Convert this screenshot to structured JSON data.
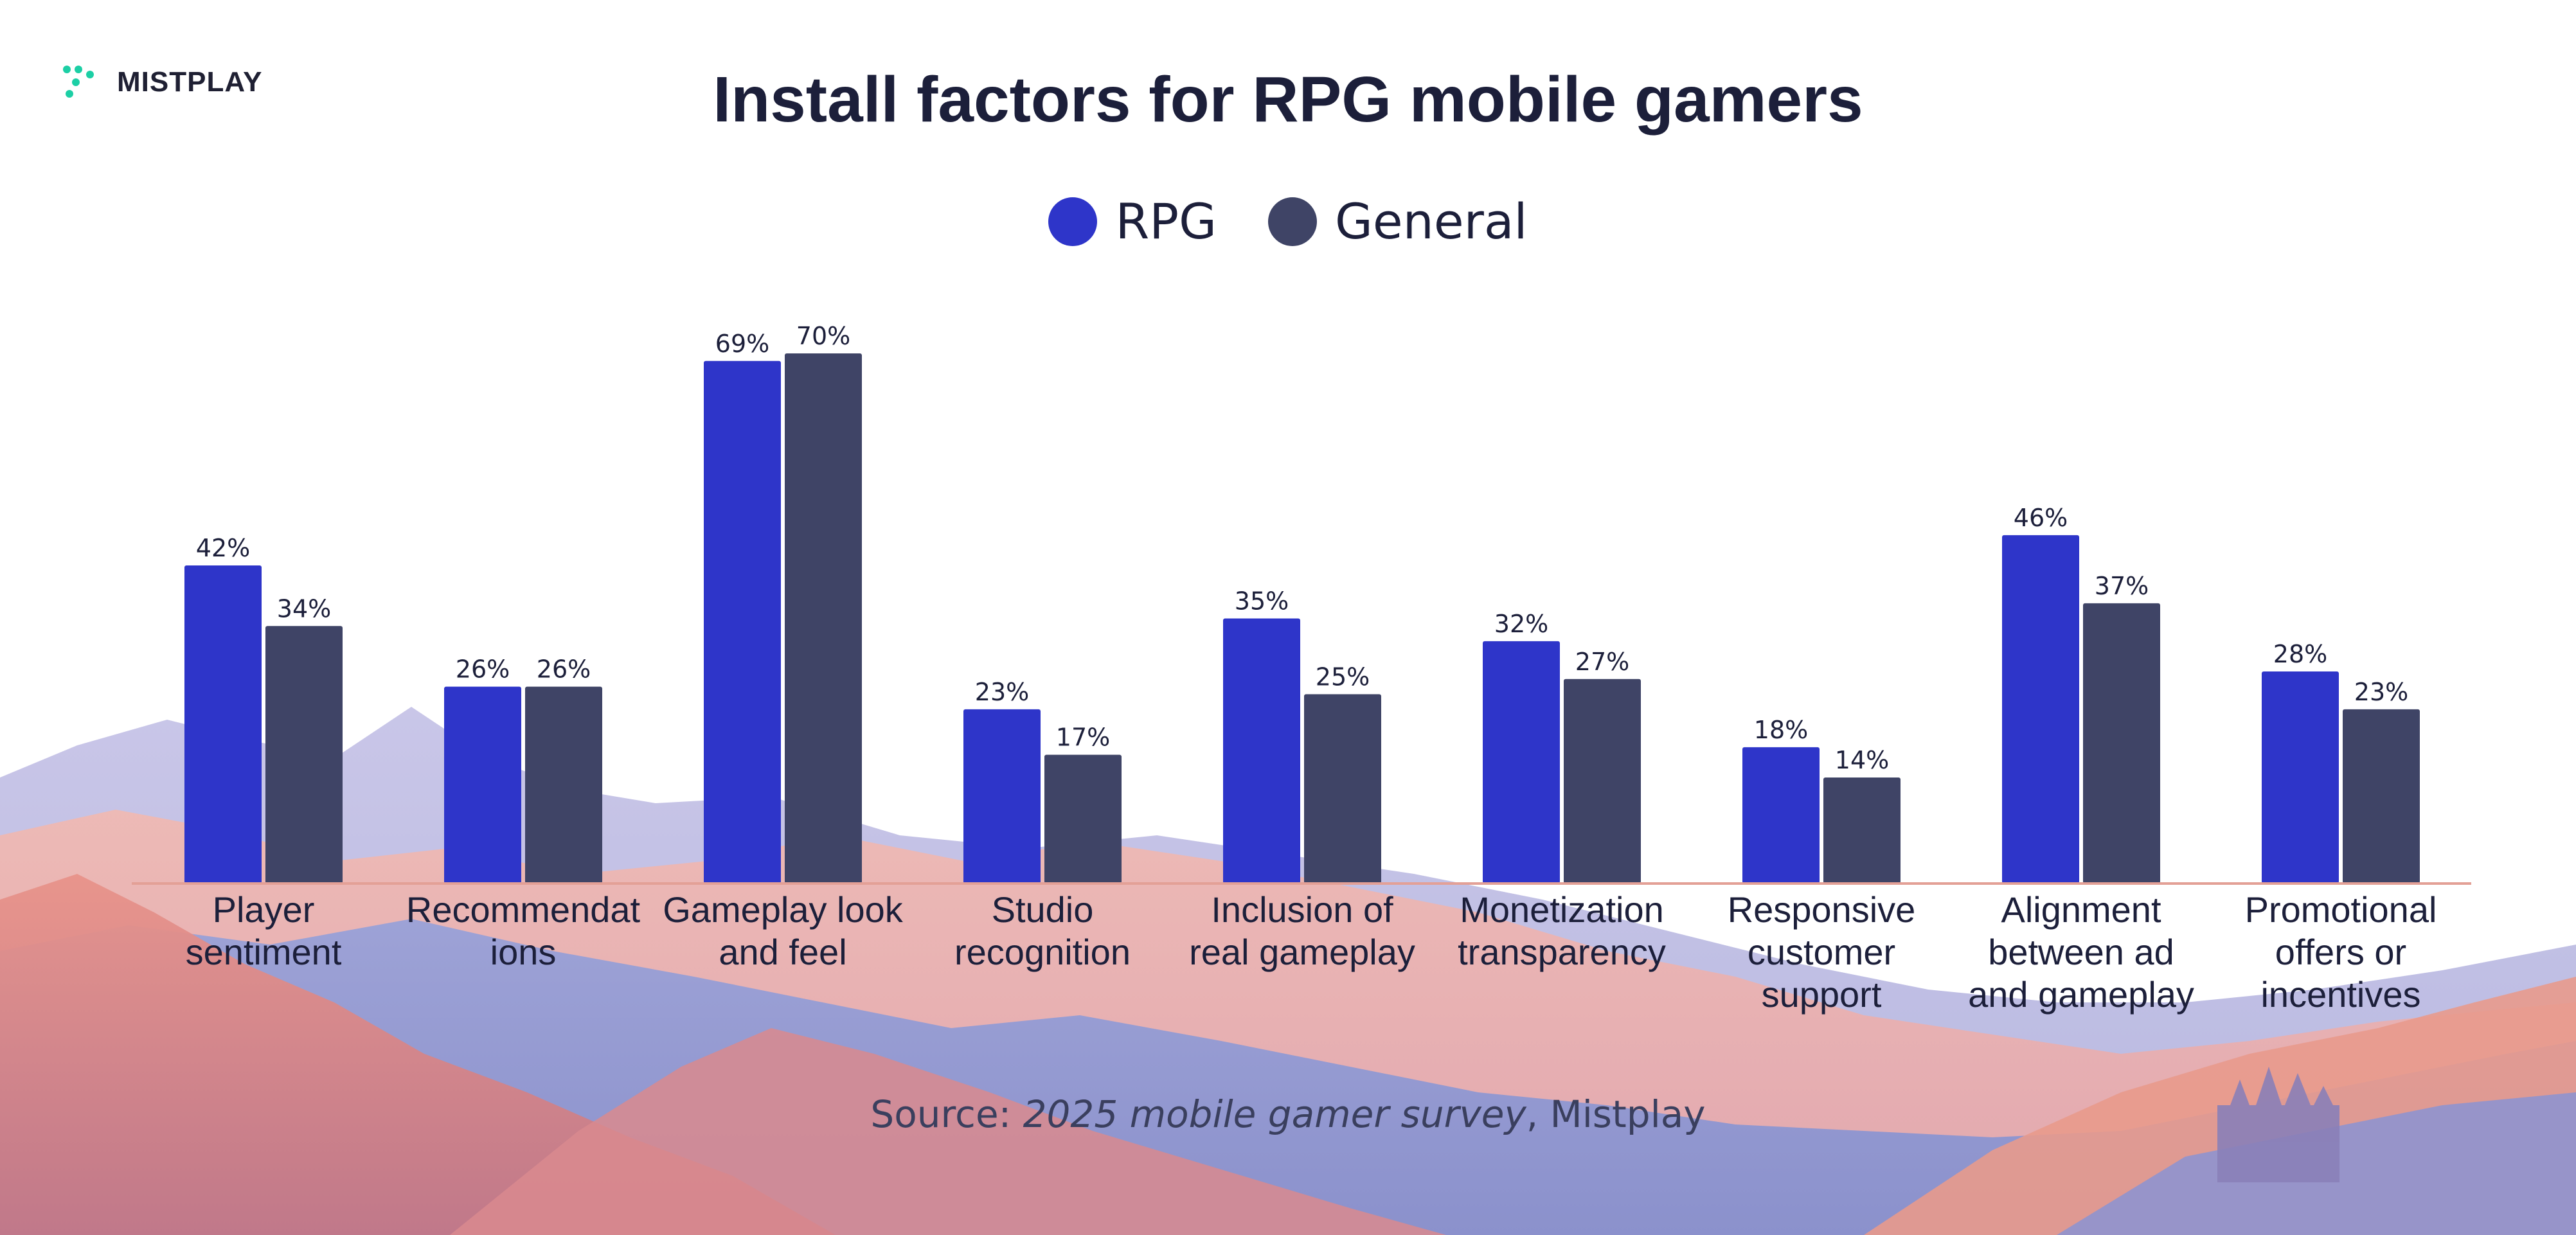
{
  "logo": {
    "text": "MISTPLAY",
    "icon": "mistplay-dots-logo",
    "color": "#1ccfa5"
  },
  "title": "Install factors for RPG mobile gamers",
  "legend": [
    {
      "label": "RPG",
      "color": "#2e35c9"
    },
    {
      "label": "General",
      "color": "#3f4466"
    }
  ],
  "source": {
    "prefix": "Source: ",
    "italic": "2025 mobile gamer survey",
    "suffix": ", Mistplay"
  },
  "chart_data": {
    "type": "bar",
    "title": "Install factors for RPG mobile gamers",
    "categories": [
      [
        "Player",
        "sentiment"
      ],
      [
        "Recommendat",
        "ions"
      ],
      [
        "Gameplay look",
        "and feel"
      ],
      [
        "Studio",
        "recognition"
      ],
      [
        "Inclusion of",
        "real gameplay"
      ],
      [
        "Monetization",
        "transparency"
      ],
      [
        "Responsive",
        "customer",
        "support"
      ],
      [
        "Alignment",
        "between ad",
        "and gameplay"
      ],
      [
        "Promotional",
        "offers or",
        "incentives"
      ]
    ],
    "series": [
      {
        "name": "RPG",
        "color": "#2e35c9",
        "values": [
          42,
          26,
          69,
          23,
          35,
          32,
          18,
          46,
          28
        ]
      },
      {
        "name": "General",
        "color": "#3f4466",
        "values": [
          34,
          26,
          70,
          17,
          25,
          27,
          14,
          37,
          23
        ]
      }
    ],
    "value_suffix": "%",
    "ylim": [
      0,
      70
    ],
    "grid": false,
    "legend_position": "top-center",
    "xlabel": "",
    "ylabel": ""
  }
}
